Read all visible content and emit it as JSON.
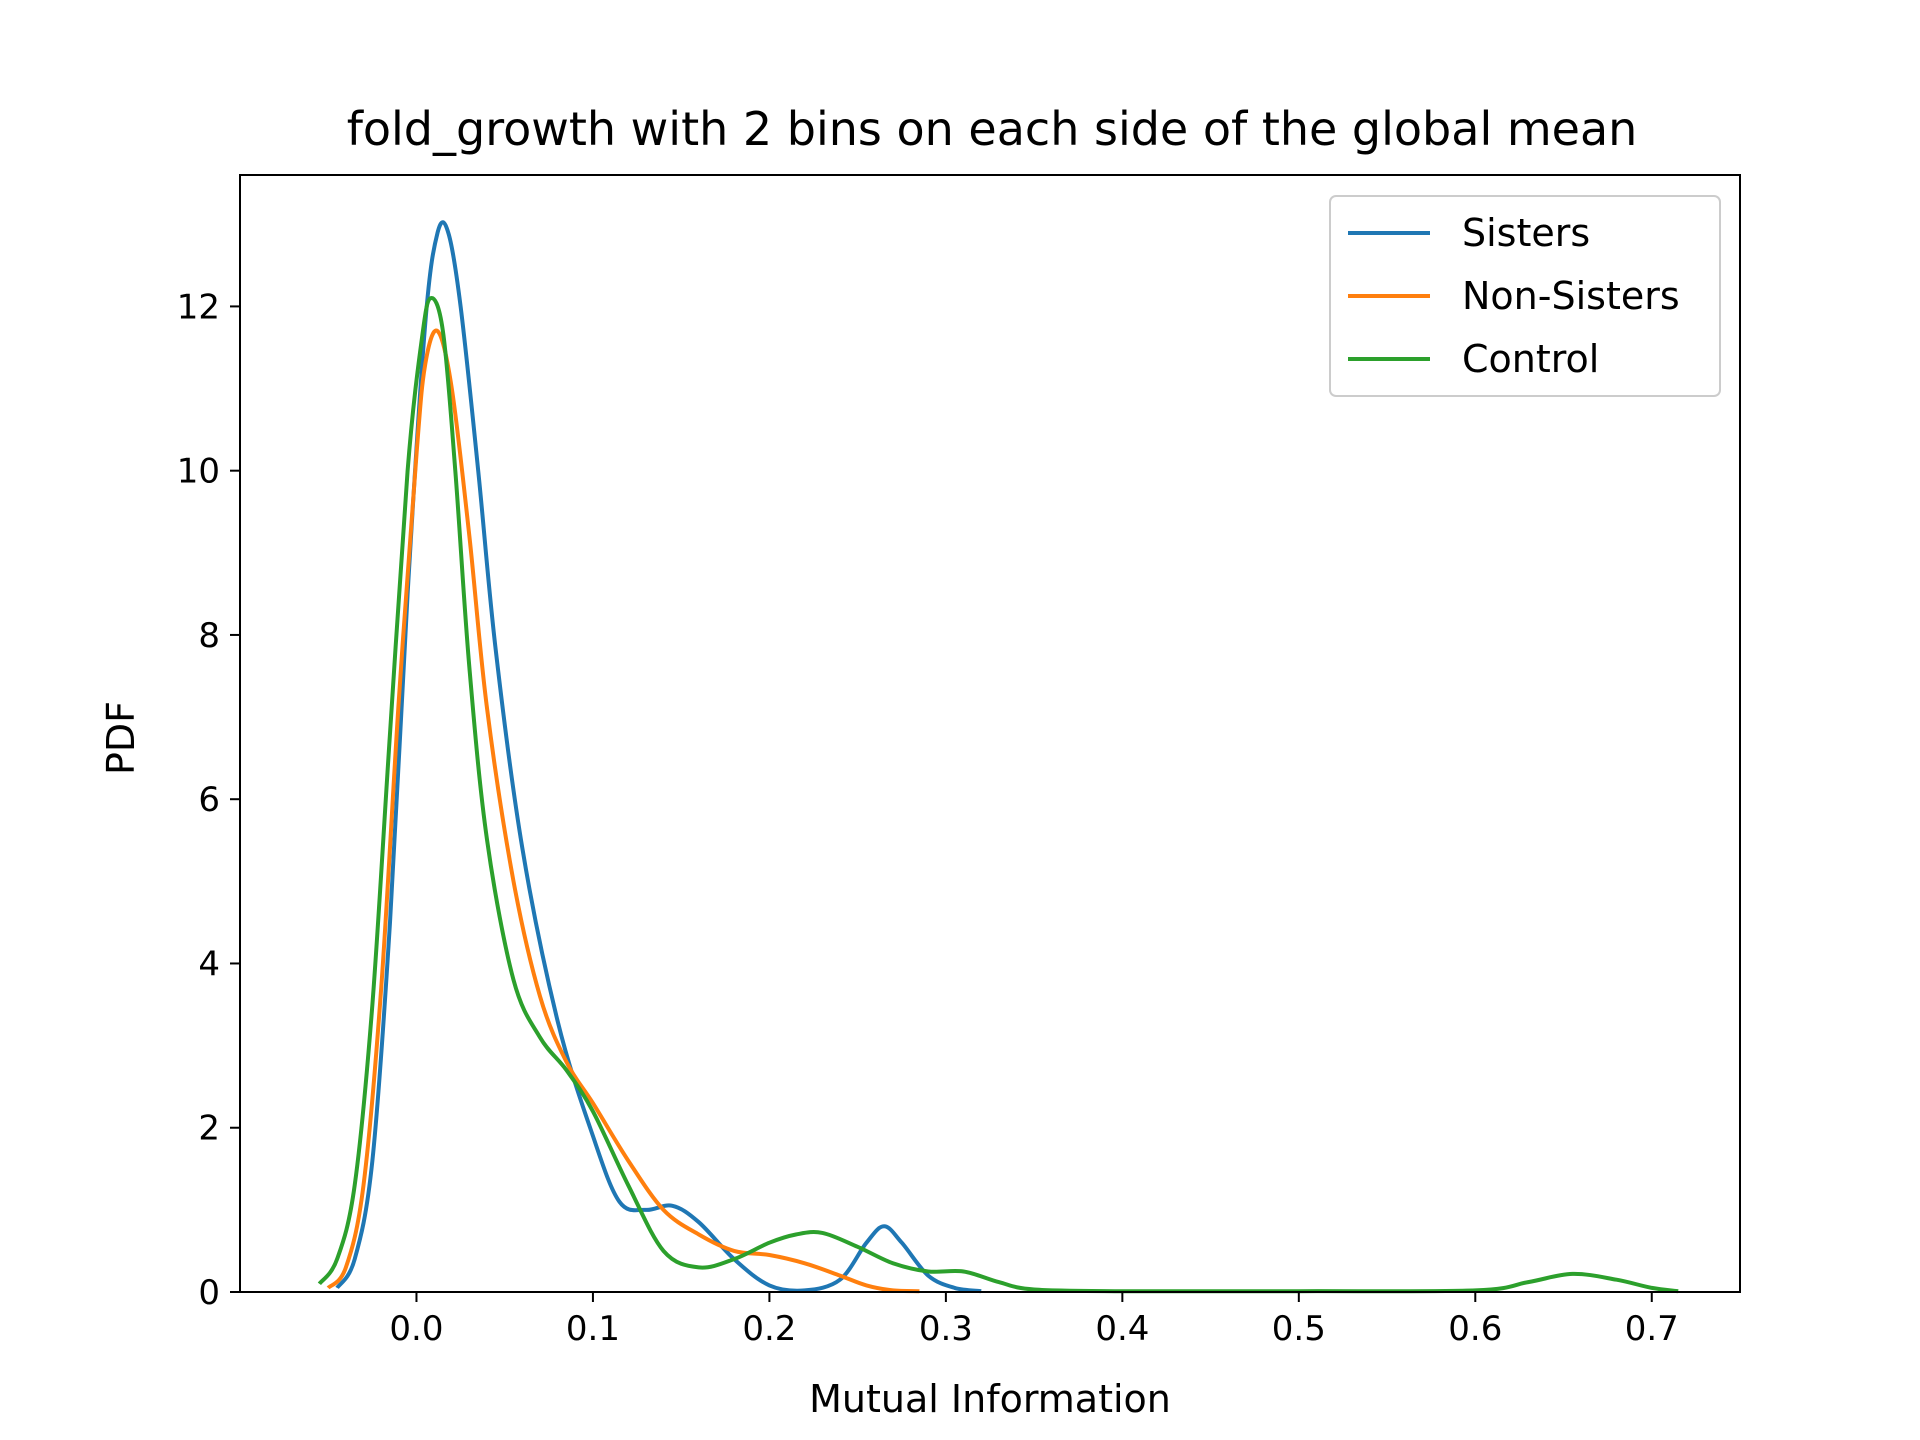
{
  "chart_data": {
    "type": "line",
    "title": "fold_growth with 2 bins on each side of the global mean",
    "xlabel": "Mutual Information",
    "ylabel": "PDF",
    "xlim": [
      -0.1,
      0.75
    ],
    "ylim": [
      0,
      13.6
    ],
    "xticks": [
      0.0,
      0.1,
      0.2,
      0.3,
      0.4,
      0.5,
      0.6,
      0.7
    ],
    "xtick_labels": [
      "0.0",
      "0.1",
      "0.2",
      "0.3",
      "0.4",
      "0.5",
      "0.6",
      "0.7"
    ],
    "yticks": [
      0,
      2,
      4,
      6,
      8,
      10,
      12
    ],
    "ytick_labels": [
      "0",
      "2",
      "4",
      "6",
      "8",
      "10",
      "12"
    ],
    "grid": false,
    "legend_position": "top-right",
    "series": [
      {
        "name": "Sisters",
        "color": "#1f77b4",
        "x": [
          -0.045,
          -0.035,
          -0.025,
          -0.015,
          -0.005,
          0.005,
          0.012,
          0.018,
          0.025,
          0.035,
          0.045,
          0.06,
          0.08,
          0.1,
          0.115,
          0.13,
          0.145,
          0.16,
          0.18,
          0.2,
          0.22,
          0.24,
          0.255,
          0.265,
          0.275,
          0.29,
          0.305,
          0.32
        ],
        "y": [
          0.05,
          0.4,
          1.6,
          4.5,
          8.5,
          11.8,
          12.9,
          12.9,
          12.0,
          10.0,
          7.8,
          5.4,
          3.3,
          1.9,
          1.1,
          1.0,
          1.05,
          0.85,
          0.4,
          0.08,
          0.02,
          0.15,
          0.6,
          0.8,
          0.6,
          0.2,
          0.05,
          0.01
        ]
      },
      {
        "name": "Non-Sisters",
        "color": "#ff7f0e",
        "x": [
          -0.05,
          -0.04,
          -0.03,
          -0.02,
          -0.01,
          0.0,
          0.005,
          0.012,
          0.02,
          0.03,
          0.04,
          0.055,
          0.07,
          0.085,
          0.1,
          0.12,
          0.14,
          0.16,
          0.18,
          0.2,
          0.22,
          0.24,
          0.255,
          0.27,
          0.285
        ],
        "y": [
          0.05,
          0.3,
          1.3,
          3.7,
          7.2,
          10.2,
          11.3,
          11.7,
          11.0,
          9.2,
          7.1,
          5.0,
          3.6,
          2.8,
          2.3,
          1.6,
          1.0,
          0.7,
          0.5,
          0.45,
          0.35,
          0.2,
          0.08,
          0.02,
          0.01
        ]
      },
      {
        "name": "Control",
        "color": "#2ca02c",
        "x": [
          -0.055,
          -0.045,
          -0.035,
          -0.025,
          -0.015,
          -0.005,
          0.003,
          0.008,
          0.015,
          0.022,
          0.03,
          0.04,
          0.055,
          0.07,
          0.085,
          0.1,
          0.12,
          0.14,
          0.16,
          0.18,
          0.2,
          0.215,
          0.23,
          0.25,
          0.27,
          0.29,
          0.31,
          0.33,
          0.35,
          0.4,
          0.5,
          0.6,
          0.63,
          0.655,
          0.68,
          0.7,
          0.715
        ],
        "y": [
          0.1,
          0.4,
          1.3,
          3.5,
          6.8,
          10.0,
          11.6,
          12.1,
          11.7,
          10.0,
          7.6,
          5.5,
          3.8,
          3.1,
          2.7,
          2.2,
          1.3,
          0.5,
          0.3,
          0.4,
          0.6,
          0.7,
          0.72,
          0.55,
          0.35,
          0.25,
          0.25,
          0.12,
          0.03,
          0.01,
          0.01,
          0.02,
          0.12,
          0.22,
          0.15,
          0.05,
          0.01
        ]
      }
    ]
  }
}
